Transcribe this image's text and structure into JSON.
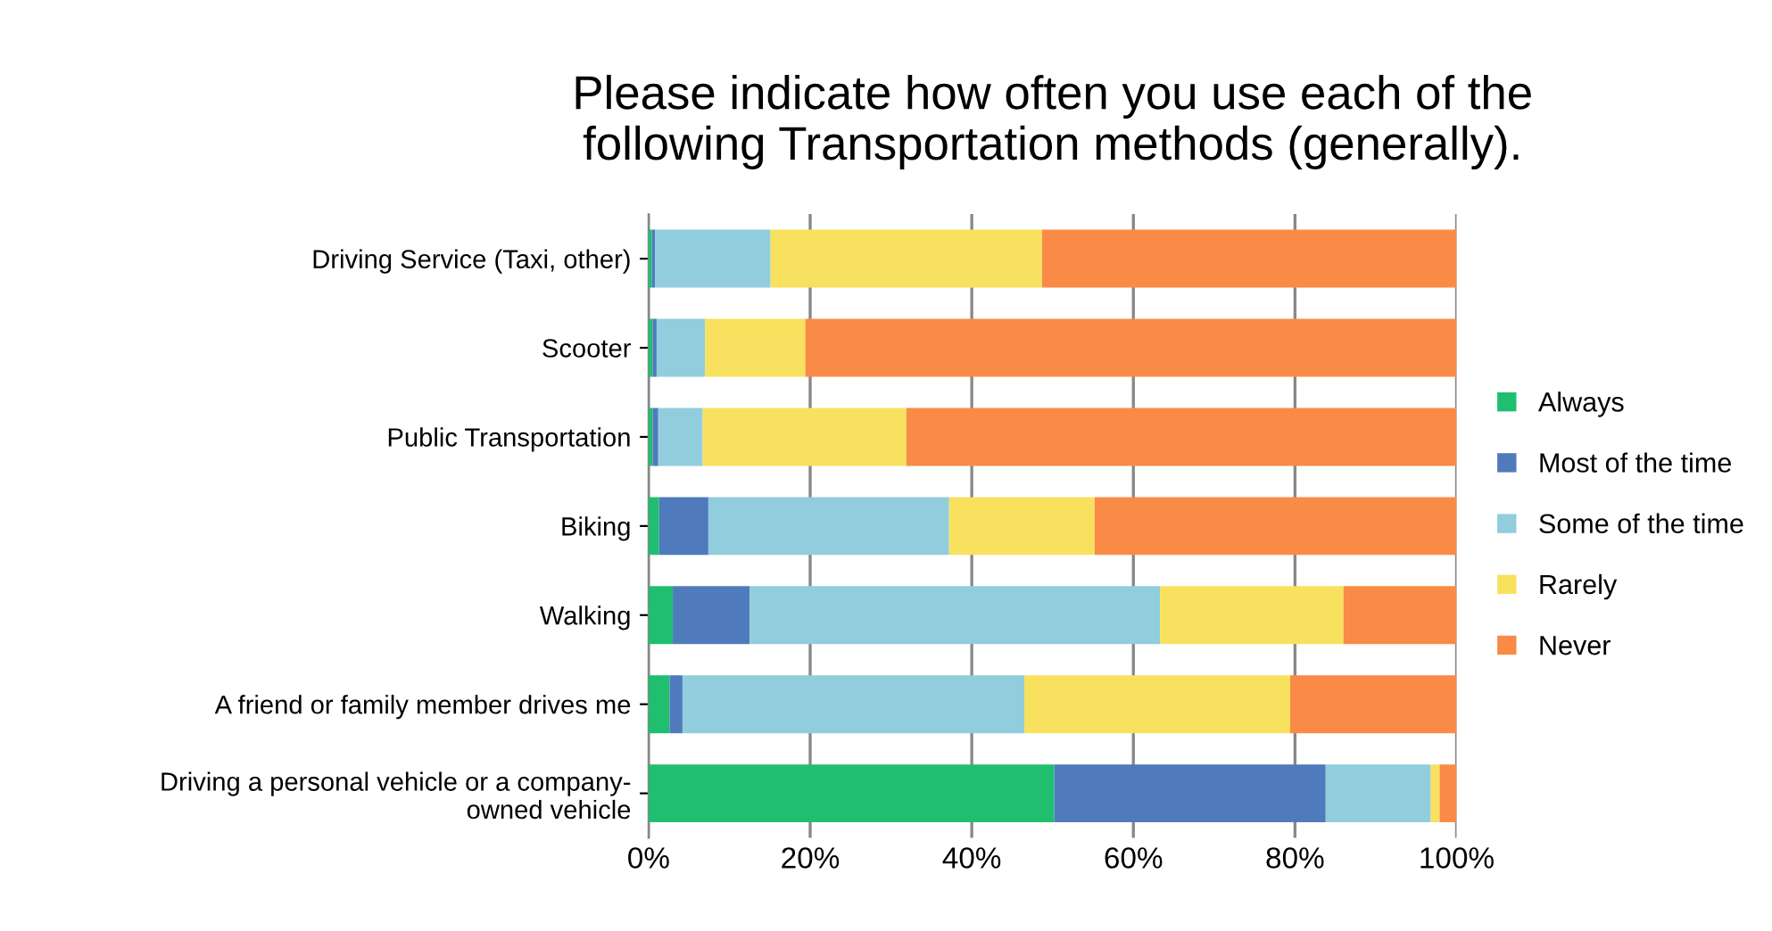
{
  "chart_data": {
    "type": "bar",
    "orientation": "horizontal",
    "stacked": true,
    "title": "Please indicate how often you use each of the\nfollowing Transportation methods (generally).",
    "categories": [
      "Driving Service (Taxi, other)",
      "Scooter",
      "Public Transportation",
      "Biking",
      "Walking",
      "A friend or family member drives me",
      "Driving a personal vehicle or a company-\nowned vehicle"
    ],
    "series": [
      {
        "name": "Always",
        "color": "#1fbf6f",
        "values": [
          0.4,
          0.5,
          0.5,
          1.3,
          3.0,
          2.6,
          50.2
        ]
      },
      {
        "name": "Most of the time",
        "color": "#4f7bbd",
        "values": [
          0.4,
          0.5,
          0.7,
          6.1,
          9.5,
          1.6,
          33.6
        ]
      },
      {
        "name": "Some of the time",
        "color": "#92cddd",
        "values": [
          14.3,
          6.0,
          5.5,
          29.8,
          50.8,
          42.3,
          13.0
        ]
      },
      {
        "name": "Rarely",
        "color": "#f7e15f",
        "values": [
          33.6,
          12.4,
          25.2,
          18.0,
          22.7,
          32.9,
          1.1
        ]
      },
      {
        "name": "Never",
        "color": "#f98b47",
        "values": [
          51.3,
          80.6,
          68.1,
          44.8,
          14.0,
          20.6,
          2.1
        ]
      }
    ],
    "xlim": [
      0,
      100
    ],
    "xticks": [
      {
        "value": 0,
        "label": "0%"
      },
      {
        "value": 20,
        "label": "20%"
      },
      {
        "value": 40,
        "label": "40%"
      },
      {
        "value": 60,
        "label": "60%"
      },
      {
        "value": 80,
        "label": "80%"
      },
      {
        "value": 100,
        "label": "100%"
      }
    ],
    "grid": "x",
    "legend": "right"
  }
}
